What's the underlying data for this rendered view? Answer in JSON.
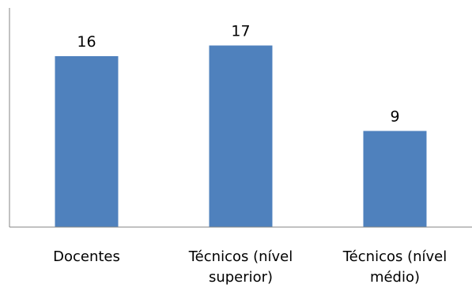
{
  "chart_data": {
    "type": "bar",
    "categories": [
      [
        "Docentes"
      ],
      [
        "Técnicos (nível",
        "superior)"
      ],
      [
        "Técnicos (nível",
        "médio)"
      ]
    ],
    "values": [
      16,
      17,
      9
    ],
    "ylim": [
      0,
      20
    ],
    "grid": false,
    "legend": "none",
    "title": "",
    "xlabel": "",
    "ylabel": ""
  },
  "colors": {
    "bar": "#4F81BD",
    "axis": "#868686",
    "text": "#000000"
  }
}
